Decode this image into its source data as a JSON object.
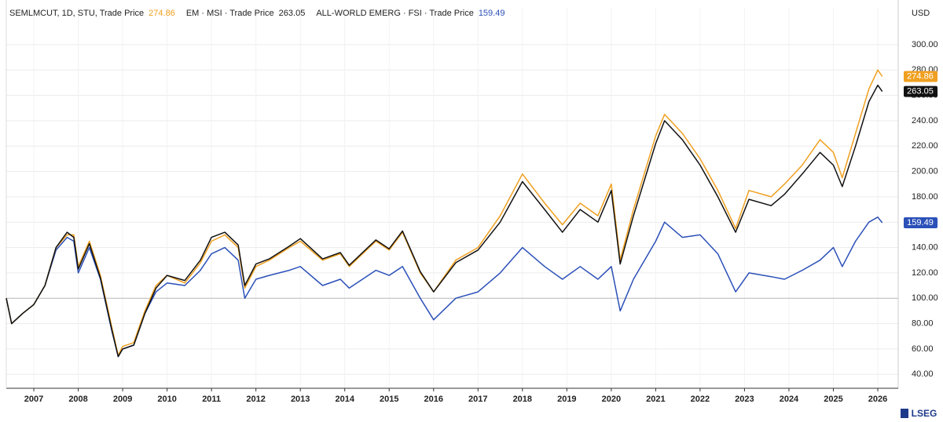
{
  "chart_data": {
    "type": "line",
    "y_unit": "USD",
    "brand": "LSEG",
    "x": [
      2006.38,
      2006.5,
      2006.75,
      2007.0,
      2007.25,
      2007.5,
      2007.75,
      2007.9,
      2008.0,
      2008.25,
      2008.5,
      2008.75,
      2008.9,
      2009.0,
      2009.25,
      2009.5,
      2009.75,
      2010.0,
      2010.4,
      2010.75,
      2011.0,
      2011.3,
      2011.6,
      2011.75,
      2012.0,
      2012.3,
      2012.75,
      2013.0,
      2013.5,
      2013.9,
      2014.1,
      2014.7,
      2015.0,
      2015.3,
      2015.7,
      2016.0,
      2016.5,
      2017.0,
      2017.5,
      2018.0,
      2018.5,
      2018.9,
      2019.3,
      2019.7,
      2020.0,
      2020.2,
      2020.5,
      2021.0,
      2021.2,
      2021.6,
      2022.0,
      2022.4,
      2022.8,
      2023.1,
      2023.6,
      2023.9,
      2024.3,
      2024.7,
      2025.0,
      2025.2,
      2025.5,
      2025.8,
      2026.0,
      2026.1
    ],
    "series": [
      {
        "name": "SEMLMCUT, 1D, STU, Trade Price",
        "color": "#f0a020",
        "values": [
          100,
          80,
          88,
          95,
          110,
          140,
          150,
          150,
          125,
          145,
          118,
          78,
          55,
          62,
          65,
          90,
          110,
          118,
          112,
          128,
          145,
          150,
          140,
          108,
          125,
          130,
          140,
          145,
          130,
          135,
          125,
          145,
          138,
          152,
          120,
          105,
          130,
          140,
          165,
          198,
          175,
          158,
          175,
          165,
          190,
          130,
          170,
          228,
          245,
          230,
          210,
          185,
          155,
          185,
          180,
          190,
          205,
          225,
          215,
          195,
          230,
          265,
          280,
          274.86
        ]
      },
      {
        "name": "EM · MSI · Trade Price",
        "color": "#111111",
        "values": [
          100,
          80,
          88,
          95,
          110,
          140,
          152,
          148,
          123,
          143,
          116,
          76,
          54,
          60,
          63,
          88,
          108,
          118,
          114,
          130,
          148,
          152,
          142,
          110,
          127,
          131,
          141,
          147,
          131,
          136,
          126,
          146,
          139,
          153,
          121,
          105,
          128,
          138,
          160,
          192,
          170,
          152,
          170,
          160,
          185,
          127,
          165,
          222,
          240,
          225,
          205,
          180,
          152,
          178,
          173,
          182,
          198,
          215,
          205,
          188,
          220,
          255,
          268,
          263.05
        ]
      },
      {
        "name": "ALL-WORLD EMERG · FSI · Trade Price",
        "color": "#2b50b8",
        "values": [
          100,
          80,
          88,
          95,
          110,
          138,
          148,
          145,
          120,
          140,
          115,
          75,
          54,
          60,
          63,
          88,
          105,
          112,
          110,
          122,
          135,
          140,
          130,
          100,
          115,
          118,
          122,
          125,
          110,
          115,
          108,
          122,
          118,
          125,
          100,
          83,
          100,
          105,
          120,
          140,
          125,
          115,
          125,
          115,
          125,
          90,
          115,
          145,
          160,
          148,
          150,
          135,
          105,
          120,
          117,
          115,
          122,
          130,
          140,
          125,
          145,
          160,
          164,
          159.49
        ]
      }
    ],
    "reference_line": 100,
    "xlim": [
      2006.38,
      2026.46
    ],
    "xticks": [
      2007,
      2008,
      2009,
      2010,
      2011,
      2012,
      2013,
      2014,
      2015,
      2016,
      2017,
      2018,
      2019,
      2020,
      2021,
      2022,
      2023,
      2024,
      2025,
      2026
    ],
    "ylim": [
      29,
      329
    ],
    "yticks": [
      {
        "value": 40,
        "label": "40.00"
      },
      {
        "value": 60,
        "label": "60.00"
      },
      {
        "value": 80,
        "label": "80.00"
      },
      {
        "value": 100,
        "label": "100.00"
      },
      {
        "value": 120,
        "label": "120.00"
      },
      {
        "value": 140,
        "label": "140.00"
      },
      {
        "value": 160,
        "label": "160.00"
      },
      {
        "value": 180,
        "label": "180.00"
      },
      {
        "value": 200,
        "label": "200.00"
      },
      {
        "value": 220,
        "label": "220.00"
      },
      {
        "value": 240,
        "label": "240.00"
      },
      {
        "value": 260,
        "label": "260.00"
      },
      {
        "value": 280,
        "label": "280.00"
      },
      {
        "value": 300,
        "label": "300.00"
      }
    ],
    "grid": true
  }
}
